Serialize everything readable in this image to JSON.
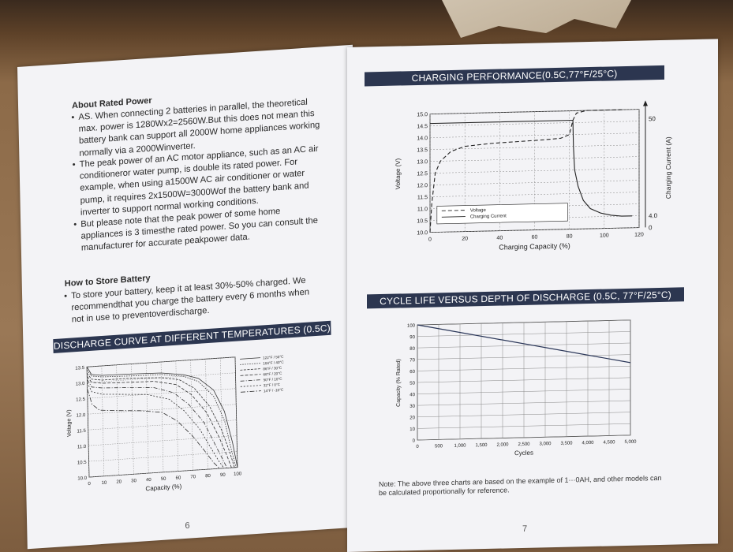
{
  "left_page": {
    "about": {
      "title": "About Rated Power",
      "bullets": [
        [
          "AS. When connecting 2 batteries in parallel, the theoretical",
          "max. power is 1280Wx2=2560W.But this does not mean this",
          "battery bank can support all 2000W home appliances working",
          "normally via a 2000Winverter."
        ],
        [
          "The peak power of an AC motor appliance, such as an AC air",
          "conditioneror water pump, is double its rated power. For",
          "example, when using a1500W AC air conditioner or water",
          "pump, it requires 2x1500W=3000Wof the battery bank and",
          "inverter to support normal working conditions."
        ],
        [
          "But please note that the peak power of some home",
          "appliances is 3 timesthe rated power. So you can consult the",
          "manufacturer for accurate peakpower data."
        ]
      ]
    },
    "store": {
      "title": "How to Store Battery",
      "lines": [
        "To store your battery, keep it at least 30%-50% charged. We",
        "recommendthat you charge the battery every 6 months when",
        "not in use to preventoverdischarge."
      ]
    },
    "banner": "DISCHARGE CURVE AT DIFFERENT TEMPERATURES (0.5C)",
    "page_number": "6"
  },
  "right_page": {
    "banner_top": "CHARGING PERFORMANCE(0.5C,77°F/25°C)",
    "banner_mid": "CYCLE LIFE VERSUS DEPTH OF DISCHARGE (0.5C, 77°F/25°C)",
    "note_lines": [
      "Note: The above three charts are based on the example of 1···0AH, and other models can",
      "be calculated proportionally for reference."
    ],
    "page_number": "7"
  },
  "chart_data": [
    {
      "type": "line",
      "title": "DISCHARGE CURVE AT DIFFERENT TEMPERATURES (0.5C)",
      "xlabel": "Capacity (%)",
      "ylabel": "Voltage (V)",
      "xlim": [
        0,
        100
      ],
      "ylim": [
        10.0,
        13.5
      ],
      "x_ticks": [
        "0",
        "10",
        "20",
        "30",
        "40",
        "50",
        "60",
        "70",
        "80",
        "90",
        "100"
      ],
      "y_ticks": [
        "10.0",
        "10.5",
        "11.0",
        "11.5",
        "12.0",
        "12.5",
        "13.0",
        "13.5"
      ],
      "legend_position": "top-right",
      "series": [
        {
          "name": "122°F / 50°C",
          "x": [
            0,
            3,
            10,
            30,
            50,
            65,
            75,
            85,
            92,
            97,
            100
          ],
          "y": [
            13.5,
            13.25,
            13.2,
            13.18,
            13.15,
            13.05,
            12.9,
            12.5,
            11.8,
            10.8,
            10.0
          ]
        },
        {
          "name": "104°F / 40°C",
          "x": [
            0,
            3,
            10,
            30,
            50,
            65,
            75,
            85,
            92,
            96,
            99
          ],
          "y": [
            13.4,
            13.2,
            13.15,
            13.12,
            13.1,
            13.0,
            12.8,
            12.3,
            11.5,
            10.6,
            10.0
          ]
        },
        {
          "name": "86°F / 30°C",
          "x": [
            0,
            3,
            10,
            30,
            50,
            62,
            72,
            82,
            90,
            95,
            98
          ],
          "y": [
            13.3,
            13.1,
            13.05,
            13.05,
            13.0,
            12.9,
            12.6,
            12.0,
            11.2,
            10.5,
            10.0
          ]
        },
        {
          "name": "68°F / 20°C",
          "x": [
            0,
            3,
            10,
            30,
            45,
            60,
            70,
            80,
            88,
            93,
            96
          ],
          "y": [
            13.2,
            13.0,
            12.95,
            12.92,
            12.9,
            12.75,
            12.4,
            11.8,
            11.0,
            10.4,
            10.0
          ]
        },
        {
          "name": "50°F / 10°C",
          "x": [
            0,
            3,
            10,
            30,
            45,
            58,
            68,
            78,
            85,
            90,
            93
          ],
          "y": [
            13.1,
            12.85,
            12.8,
            12.75,
            12.7,
            12.5,
            12.1,
            11.5,
            10.8,
            10.3,
            10.0
          ]
        },
        {
          "name": "32°F / 0°C",
          "x": [
            0,
            3,
            10,
            25,
            40,
            55,
            65,
            75,
            82,
            88,
            91
          ],
          "y": [
            13.0,
            12.7,
            12.6,
            12.55,
            12.5,
            12.3,
            11.9,
            11.3,
            10.7,
            10.2,
            10.0
          ]
        },
        {
          "name": "14°F / -10°C",
          "x": [
            0,
            3,
            8,
            20,
            35,
            50,
            60,
            70,
            78,
            84,
            88
          ],
          "y": [
            12.8,
            12.3,
            12.1,
            12.05,
            12.0,
            11.9,
            11.6,
            11.1,
            10.6,
            10.2,
            10.0
          ]
        }
      ]
    },
    {
      "type": "line",
      "title": "CHARGING PERFORMANCE(0.5C,77°F/25°C)",
      "xlabel": "Charging Capacity (%)",
      "ylabel": "Voltage (V)",
      "y2label": "Charging Current (A)",
      "xlim": [
        0,
        120
      ],
      "ylim": [
        10.0,
        15.0
      ],
      "x_ticks": [
        "0",
        "20",
        "40",
        "60",
        "80",
        "100",
        "120"
      ],
      "y_ticks": [
        "10.0",
        "10.5",
        "11.0",
        "11.5",
        "12.0",
        "12.5",
        "13.0",
        "13.5",
        "14.0",
        "14.5",
        "15.0"
      ],
      "y2_ticks": [
        "50",
        "4.0",
        "0"
      ],
      "legend_position": "bottom-left",
      "series": [
        {
          "name": "Voltage",
          "style": "dashed",
          "x": [
            0,
            1,
            3,
            6,
            12,
            20,
            35,
            50,
            65,
            75,
            80,
            82,
            84,
            90,
            100,
            110
          ],
          "y": [
            10.0,
            11.2,
            12.5,
            13.0,
            13.4,
            13.6,
            13.7,
            13.75,
            13.8,
            13.85,
            14.0,
            14.6,
            14.9,
            15.0,
            15.0,
            15.0
          ]
        },
        {
          "name": "Charging Current",
          "style": "solid",
          "x": [
            0,
            82,
            82.3,
            83,
            85,
            88,
            92,
            98,
            104,
            110,
            116
          ],
          "y": [
            14.6,
            14.6,
            13.5,
            12.5,
            11.8,
            11.2,
            10.85,
            10.65,
            10.55,
            10.5,
            10.5
          ]
        }
      ]
    },
    {
      "type": "line",
      "title": "CYCLE LIFE VERSUS DEPTH OF DISCHARGE (0.5C, 77°F/25°C)",
      "xlabel": "Cycles",
      "ylabel": "Capacity (% Rated)",
      "xlim": [
        0,
        5000
      ],
      "ylim": [
        0,
        100
      ],
      "x_ticks": [
        "0",
        "500",
        "1,000",
        "1,500",
        "2,000",
        "2,500",
        "3,000",
        "3,500",
        "4,000",
        "4,500",
        "5,000"
      ],
      "y_ticks": [
        "0",
        "10",
        "20",
        "30",
        "40",
        "50",
        "60",
        "70",
        "80",
        "90",
        "100"
      ],
      "series": [
        {
          "x": [
            0,
            5000
          ],
          "y": [
            100,
            63
          ]
        }
      ]
    }
  ]
}
